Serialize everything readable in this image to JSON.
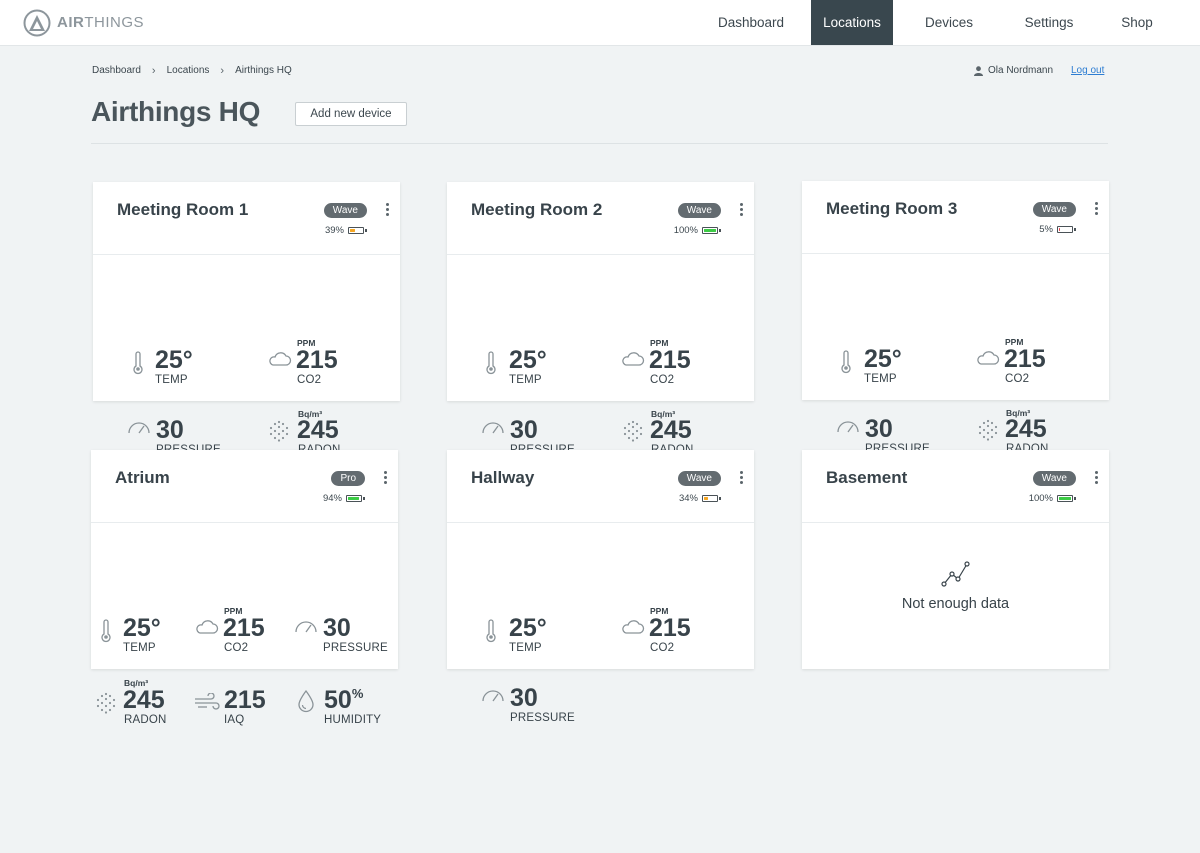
{
  "brand": {
    "name_bold": "AIR",
    "name_rest": "THINGS"
  },
  "nav": {
    "items": [
      {
        "label": "Dashboard",
        "active": false
      },
      {
        "label": "Locations",
        "active": true
      },
      {
        "label": "Devices",
        "active": false
      },
      {
        "label": "Settings",
        "active": false
      },
      {
        "label": "Shop",
        "active": false
      }
    ]
  },
  "breadcrumb": [
    "Dashboard",
    "Locations",
    "Airthings HQ"
  ],
  "user": {
    "name": "Ola Nordmann",
    "logout": "Log out"
  },
  "page": {
    "title": "Airthings HQ",
    "add_button": "Add new device"
  },
  "colors": {
    "battery_good": "#3ccb45",
    "battery_mid": "#f5a623",
    "battery_low": "#e8424a",
    "nav_active": "#39474e"
  },
  "cards": [
    {
      "title": "Meeting Room 1",
      "badge": "Wave",
      "battery": "39%",
      "battery_level": 0.39,
      "battery_color": "#f5a623",
      "metrics": {
        "temp": {
          "value": "25°",
          "label": "TEMP"
        },
        "co2": {
          "unit": "PPM",
          "value": "215",
          "label": "CO2"
        },
        "pressure": {
          "value": "30",
          "label": "PRESSURE"
        },
        "radon": {
          "unit": "Bq/m³",
          "value": "245",
          "label": "RADON"
        }
      }
    },
    {
      "title": "Meeting Room 2",
      "badge": "Wave",
      "battery": "100%",
      "battery_level": 1.0,
      "battery_color": "#3ccb45",
      "metrics": {
        "temp": {
          "value": "25°",
          "label": "TEMP"
        },
        "co2": {
          "unit": "PPM",
          "value": "215",
          "label": "CO2"
        },
        "pressure": {
          "value": "30",
          "label": "PRESSURE"
        },
        "radon": {
          "unit": "Bq/m³",
          "value": "245",
          "label": "RADON"
        }
      }
    },
    {
      "title": "Meeting Room 3",
      "badge": "Wave",
      "battery": "5%",
      "battery_level": 0.05,
      "battery_color": "#e8424a",
      "metrics": {
        "temp": {
          "value": "25°",
          "label": "TEMP"
        },
        "co2": {
          "unit": "PPM",
          "value": "215",
          "label": "CO2"
        },
        "pressure": {
          "value": "30",
          "label": "PRESSURE"
        },
        "radon": {
          "unit": "Bq/m³",
          "value": "245",
          "label": "RADON"
        }
      }
    },
    {
      "title": "Atrium",
      "badge": "Pro",
      "battery": "94%",
      "battery_level": 0.94,
      "battery_color": "#3ccb45",
      "metrics": {
        "temp": {
          "value": "25°",
          "label": "TEMP"
        },
        "co2": {
          "unit": "PPM",
          "value": "215",
          "label": "CO2"
        },
        "pressure": {
          "value": "30",
          "label": "PRESSURE"
        },
        "radon": {
          "unit": "Bq/m³",
          "value": "245",
          "label": "RADON"
        },
        "iaq": {
          "value": "215",
          "label": "IAQ"
        },
        "humidity": {
          "value": "50",
          "suffix": "%",
          "label": "HUMIDITY"
        }
      }
    },
    {
      "title": "Hallway",
      "badge": "Wave",
      "battery": "34%",
      "battery_level": 0.34,
      "battery_color": "#f5a623",
      "metrics": {
        "temp": {
          "value": "25°",
          "label": "TEMP"
        },
        "co2": {
          "unit": "PPM",
          "value": "215",
          "label": "CO2"
        },
        "pressure": {
          "value": "30",
          "label": "PRESSURE"
        }
      }
    },
    {
      "title": "Basement",
      "badge": "Wave",
      "battery": "100%",
      "battery_level": 1.0,
      "battery_color": "#3ccb45",
      "empty_text": "Not enough data"
    }
  ]
}
